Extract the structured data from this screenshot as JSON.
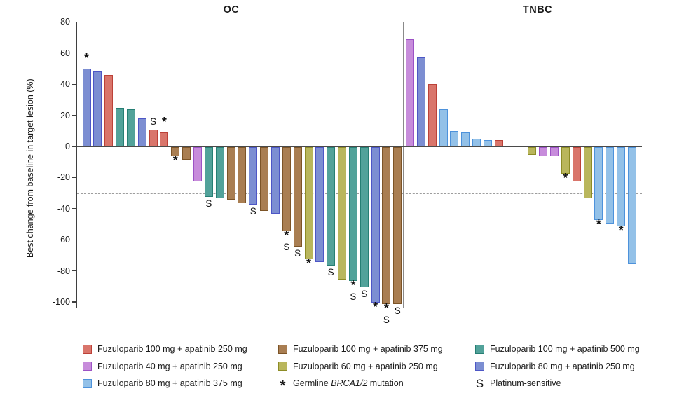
{
  "chart_data": {
    "type": "bar",
    "subtype": "waterfall",
    "ylabel": "Best change from baseline in target lesion (%)",
    "ylim": [
      -100,
      80
    ],
    "yticks": [
      80,
      60,
      40,
      20,
      0,
      -20,
      -40,
      -60,
      -80,
      -100
    ],
    "reference_lines": [
      20,
      -30
    ],
    "grid": "dashed-reference-only",
    "panels": [
      {
        "title": "OC",
        "bars": [
          {
            "value": 50,
            "treatment": "f80a250",
            "marks": [
              "*"
            ]
          },
          {
            "value": 48,
            "treatment": "f80a250",
            "marks": []
          },
          {
            "value": 46,
            "treatment": "f100a250",
            "marks": []
          },
          {
            "value": 25,
            "treatment": "f100a500",
            "marks": []
          },
          {
            "value": 24,
            "treatment": "f100a500",
            "marks": []
          },
          {
            "value": 18,
            "treatment": "f80a250",
            "marks": []
          },
          {
            "value": 11,
            "treatment": "f100a250",
            "marks": [
              "S"
            ]
          },
          {
            "value": 9,
            "treatment": "f100a250",
            "marks": [
              "*"
            ]
          },
          {
            "value": -6,
            "treatment": "f100a375",
            "marks": [
              "*"
            ]
          },
          {
            "value": -8,
            "treatment": "f100a375",
            "marks": []
          },
          {
            "value": -22,
            "treatment": "f40a250",
            "marks": []
          },
          {
            "value": -32,
            "treatment": "f100a500",
            "marks": [
              "S"
            ]
          },
          {
            "value": -33,
            "treatment": "f100a500",
            "marks": []
          },
          {
            "value": -34,
            "treatment": "f100a375",
            "marks": []
          },
          {
            "value": -36,
            "treatment": "f100a375",
            "marks": []
          },
          {
            "value": -37,
            "treatment": "f80a250",
            "marks": [
              "S"
            ]
          },
          {
            "value": -41,
            "treatment": "f100a375",
            "marks": []
          },
          {
            "value": -43,
            "treatment": "f80a250",
            "marks": []
          },
          {
            "value": -54,
            "treatment": "f100a375",
            "marks": [
              "*",
              "S"
            ]
          },
          {
            "value": -64,
            "treatment": "f100a375",
            "marks": [
              "S"
            ]
          },
          {
            "value": -72,
            "treatment": "f60a250",
            "marks": [
              "*"
            ]
          },
          {
            "value": -74,
            "treatment": "f80a250",
            "marks": []
          },
          {
            "value": -76,
            "treatment": "f100a500",
            "marks": [
              "S"
            ]
          },
          {
            "value": -85,
            "treatment": "f60a250",
            "marks": []
          },
          {
            "value": -86,
            "treatment": "f100a500",
            "marks": [
              "*",
              "S"
            ]
          },
          {
            "value": -90,
            "treatment": "f100a500",
            "marks": [
              "S"
            ]
          },
          {
            "value": -100,
            "treatment": "f80a250",
            "marks": [
              "*"
            ]
          },
          {
            "value": -101,
            "treatment": "f100a375",
            "marks": [
              "*",
              "S"
            ]
          },
          {
            "value": -101,
            "treatment": "f100a375",
            "marks": [
              "S"
            ]
          }
        ]
      },
      {
        "title": "TNBC",
        "bars": [
          {
            "value": 69,
            "treatment": "f40a250",
            "marks": []
          },
          {
            "value": 57,
            "treatment": "f80a250",
            "marks": []
          },
          {
            "value": 40,
            "treatment": "f100a250",
            "marks": []
          },
          {
            "value": 24,
            "treatment": "f80a375",
            "marks": []
          },
          {
            "value": 10,
            "treatment": "f80a375",
            "marks": []
          },
          {
            "value": 9,
            "treatment": "f80a375",
            "marks": []
          },
          {
            "value": 5,
            "treatment": "f80a375",
            "marks": []
          },
          {
            "value": 4,
            "treatment": "f80a375",
            "marks": []
          },
          {
            "value": 4,
            "treatment": "f100a250",
            "marks": []
          },
          {
            "value": -5,
            "treatment": "f60a250",
            "marks": [],
            "gap_before": 2
          },
          {
            "value": -6,
            "treatment": "f40a250",
            "marks": []
          },
          {
            "value": -6,
            "treatment": "f40a250",
            "marks": []
          },
          {
            "value": -17,
            "treatment": "f60a250",
            "marks": [
              "*"
            ]
          },
          {
            "value": -22,
            "treatment": "f100a250",
            "marks": []
          },
          {
            "value": -33,
            "treatment": "f60a250",
            "marks": []
          },
          {
            "value": -47,
            "treatment": "f80a375",
            "marks": [
              "*"
            ]
          },
          {
            "value": -49,
            "treatment": "f80a375",
            "marks": []
          },
          {
            "value": -51,
            "treatment": "f80a375",
            "marks": [
              "*"
            ]
          },
          {
            "value": -75,
            "treatment": "f80a375",
            "marks": []
          }
        ]
      }
    ],
    "treatments": {
      "f100a250": {
        "label": "Fuzuloparib 100 mg + apatinib 250 mg",
        "fill": "#D9756B",
        "stroke": "#BC4138"
      },
      "f40a250": {
        "label": "Fuzuloparib 40 mg + apatinib 250 mg",
        "fill": "#C78CDB",
        "stroke": "#9C52C5"
      },
      "f80a375": {
        "label": "Fuzuloparib 80 mg + apatinib 375 mg",
        "fill": "#93C1E8",
        "stroke": "#4D92DB"
      },
      "f100a375": {
        "label": "Fuzuloparib 100 mg + apatinib 375 mg",
        "fill": "#A97E52",
        "stroke": "#7C5427"
      },
      "f60a250": {
        "label": "Fuzuloparib 60 mg + apatinib 250 mg",
        "fill": "#B9B65C",
        "stroke": "#8D8C26"
      },
      "f100a500": {
        "label": "Fuzuloparib 100 mg + apatinib 500 mg",
        "fill": "#52A29A",
        "stroke": "#267F74"
      },
      "f80a250": {
        "label": "Fuzuloparib 80 mg + apatinib 250 mg",
        "fill": "#7C8ED2",
        "stroke": "#4D56C6"
      }
    },
    "markers": {
      "star": {
        "symbol": "*",
        "label_prefix": "Germline ",
        "label_italic": "BRCA1/2",
        "label_suffix": " mutation"
      },
      "s": {
        "symbol": "S",
        "label": "Platinum-sensitive"
      }
    },
    "legend_columns": [
      [
        "f100a250",
        "f40a250",
        "f80a375"
      ],
      [
        "f100a375",
        "f60a250",
        "marker:star"
      ],
      [
        "f100a500",
        "f80a250",
        "marker:s"
      ]
    ],
    "legend_position": "bottom"
  }
}
